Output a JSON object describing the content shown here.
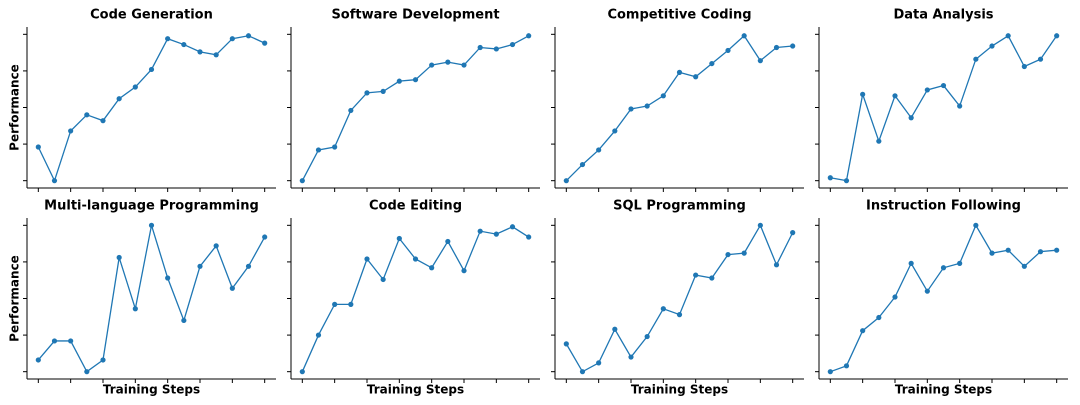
{
  "chart_data": [
    {
      "type": "line",
      "title": "Code Generation",
      "ylabel": "Performance",
      "color": "#1f77b4",
      "x": [
        0,
        1,
        2,
        3,
        4,
        5,
        6,
        7,
        8,
        9,
        10,
        11,
        12,
        13,
        14
      ],
      "values": [
        0.23,
        0,
        0.34,
        0.45,
        0.41,
        0.56,
        0.64,
        0.76,
        0.97,
        0.93,
        0.88,
        0.86,
        0.97,
        0.99,
        0.94
      ],
      "xlim": [
        -0.7,
        14.7
      ],
      "xticks": [
        0,
        2,
        4,
        6,
        8,
        10,
        12,
        14
      ],
      "ylim": [
        -0.05,
        1.05
      ],
      "yticks": [
        0,
        0.25,
        0.5,
        0.75,
        1
      ]
    },
    {
      "type": "line",
      "title": "Software Development",
      "color": "#1f77b4",
      "x": [
        0,
        1,
        2,
        3,
        4,
        5,
        6,
        7,
        8,
        9,
        10,
        11,
        12,
        13,
        14
      ],
      "values": [
        0,
        0.21,
        0.23,
        0.48,
        0.6,
        0.61,
        0.68,
        0.69,
        0.79,
        0.81,
        0.79,
        0.91,
        0.9,
        0.93,
        0.99
      ],
      "xlim": [
        -0.7,
        14.7
      ],
      "xticks": [
        0,
        2,
        4,
        6,
        8,
        10,
        12,
        14
      ],
      "ylim": [
        -0.05,
        1.05
      ],
      "yticks": [
        0,
        0.25,
        0.5,
        0.75,
        1
      ]
    },
    {
      "type": "line",
      "title": "Competitive Coding",
      "color": "#1f77b4",
      "x": [
        0,
        1,
        2,
        3,
        4,
        5,
        6,
        7,
        8,
        9,
        10,
        11,
        12,
        13,
        14
      ],
      "values": [
        0,
        0.11,
        0.21,
        0.34,
        0.49,
        0.51,
        0.58,
        0.74,
        0.71,
        0.8,
        0.89,
        0.99,
        0.82,
        0.91,
        0.92
      ],
      "xlim": [
        -0.7,
        14.7
      ],
      "xticks": [
        0,
        2,
        4,
        6,
        8,
        10,
        12,
        14
      ],
      "ylim": [
        -0.05,
        1.05
      ],
      "yticks": [
        0,
        0.25,
        0.5,
        0.75,
        1
      ]
    },
    {
      "type": "line",
      "title": "Data Analysis",
      "color": "#1f77b4",
      "x": [
        0,
        1,
        2,
        3,
        4,
        5,
        6,
        7,
        8,
        9,
        10,
        11,
        12,
        13,
        14
      ],
      "values": [
        0.02,
        0,
        0.59,
        0.27,
        0.58,
        0.43,
        0.62,
        0.65,
        0.51,
        0.83,
        0.92,
        0.99,
        0.78,
        0.83,
        0.99
      ],
      "xlim": [
        -0.7,
        14.7
      ],
      "xticks": [
        0,
        2,
        4,
        6,
        8,
        10,
        12,
        14
      ],
      "ylim": [
        -0.05,
        1.05
      ],
      "yticks": [
        0,
        0.25,
        0.5,
        0.75,
        1
      ]
    },
    {
      "type": "line",
      "title": "Multi-language Programming",
      "ylabel": "Performance",
      "xlabel": "Training Steps",
      "color": "#1f77b4",
      "x": [
        0,
        1,
        2,
        3,
        4,
        5,
        6,
        7,
        8,
        9,
        10,
        11,
        12,
        13,
        14
      ],
      "values": [
        0.08,
        0.21,
        0.21,
        0,
        0.08,
        0.78,
        0.43,
        1,
        0.64,
        0.35,
        0.72,
        0.86,
        0.57,
        0.72,
        0.92
      ],
      "xlim": [
        -0.7,
        14.7
      ],
      "xticks": [
        0,
        2,
        4,
        6,
        8,
        10,
        12,
        14
      ],
      "ylim": [
        -0.05,
        1.05
      ],
      "yticks": [
        0,
        0.25,
        0.5,
        0.75,
        1
      ]
    },
    {
      "type": "line",
      "title": "Code Editing",
      "xlabel": "Training Steps",
      "color": "#1f77b4",
      "x": [
        0,
        1,
        2,
        3,
        4,
        5,
        6,
        7,
        8,
        9,
        10,
        11,
        12,
        13,
        14
      ],
      "values": [
        0,
        0.25,
        0.46,
        0.46,
        0.77,
        0.63,
        0.91,
        0.77,
        0.71,
        0.89,
        0.69,
        0.96,
        0.94,
        0.99,
        0.92
      ],
      "xlim": [
        -0.7,
        14.7
      ],
      "xticks": [
        0,
        2,
        4,
        6,
        8,
        10,
        12,
        14
      ],
      "ylim": [
        -0.05,
        1.05
      ],
      "yticks": [
        0,
        0.25,
        0.5,
        0.75,
        1
      ]
    },
    {
      "type": "line",
      "title": "SQL Programming",
      "xlabel": "Training Steps",
      "color": "#1f77b4",
      "x": [
        0,
        1,
        2,
        3,
        4,
        5,
        6,
        7,
        8,
        9,
        10,
        11,
        12,
        13,
        14
      ],
      "values": [
        0.19,
        0,
        0.06,
        0.29,
        0.1,
        0.24,
        0.43,
        0.39,
        0.66,
        0.64,
        0.8,
        0.81,
        1,
        0.73,
        0.95
      ],
      "xlim": [
        -0.7,
        14.7
      ],
      "xticks": [
        0,
        2,
        4,
        6,
        8,
        10,
        12,
        14
      ],
      "ylim": [
        -0.05,
        1.05
      ],
      "yticks": [
        0,
        0.25,
        0.5,
        0.75,
        1
      ]
    },
    {
      "type": "line",
      "title": "Instruction Following",
      "xlabel": "Training Steps",
      "color": "#1f77b4",
      "x": [
        0,
        1,
        2,
        3,
        4,
        5,
        6,
        7,
        8,
        9,
        10,
        11,
        12,
        13,
        14
      ],
      "values": [
        0,
        0.04,
        0.28,
        0.37,
        0.51,
        0.74,
        0.55,
        0.71,
        0.74,
        1,
        0.81,
        0.83,
        0.72,
        0.82,
        0.83
      ],
      "xlim": [
        -0.7,
        14.7
      ],
      "xticks": [
        0,
        2,
        4,
        6,
        8,
        10,
        12,
        14
      ],
      "ylim": [
        -0.05,
        1.05
      ],
      "yticks": [
        0,
        0.25,
        0.5,
        0.75,
        1
      ]
    }
  ]
}
